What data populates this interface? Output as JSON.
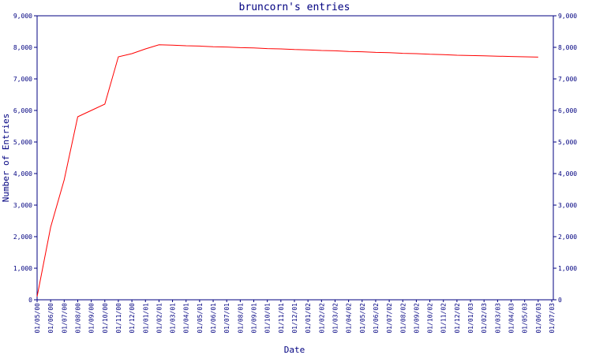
{
  "chart_data": {
    "type": "line",
    "title": "bruncorn's entries",
    "xlabel": "Date",
    "ylabel": "Number of Entries",
    "categories": [
      "01/05/00",
      "01/06/00",
      "01/07/00",
      "01/08/00",
      "01/09/00",
      "01/10/00",
      "01/11/00",
      "01/12/00",
      "01/01/01",
      "01/02/01",
      "01/03/01",
      "01/04/01",
      "01/05/01",
      "01/06/01",
      "01/07/01",
      "01/08/01",
      "01/09/01",
      "01/10/01",
      "01/11/01",
      "01/12/01",
      "01/01/02",
      "01/02/02",
      "01/03/02",
      "01/04/02",
      "01/05/02",
      "01/06/02",
      "01/07/02",
      "01/08/02",
      "01/09/02",
      "01/10/02",
      "01/11/02",
      "01/12/02",
      "01/01/03",
      "01/02/03",
      "01/03/03",
      "01/04/03",
      "01/05/03",
      "01/06/03",
      "01/07/03"
    ],
    "series": [
      {
        "color": "#ff0000",
        "values": [
          100,
          2300,
          3800,
          5800,
          6000,
          6200,
          7700,
          7800,
          7950,
          8080,
          8070,
          8050,
          8040,
          8020,
          8010,
          7990,
          7980,
          7960,
          7950,
          7930,
          7920,
          7900,
          7890,
          7870,
          7860,
          7840,
          7830,
          7810,
          7800,
          7780,
          7770,
          7750,
          7740,
          7730,
          7720,
          7710,
          7700,
          7690,
          null
        ]
      }
    ],
    "ylim": [
      0,
      9000
    ],
    "yticks": [
      0,
      {
        "value": 1000,
        "label": "1,000"
      },
      {
        "value": 2000,
        "label": "2,000"
      },
      {
        "value": 3000,
        "label": "3,000"
      },
      {
        "value": 4000,
        "label": "4,000"
      },
      {
        "value": 5000,
        "label": "5,000"
      },
      {
        "value": 6000,
        "label": "6,000"
      },
      {
        "value": 7000,
        "label": "7,000"
      },
      {
        "value": 8000,
        "label": "8,000"
      },
      {
        "value": 9000,
        "label": "9,000"
      }
    ],
    "mirror_y_axis": true,
    "axis_color": "#000080"
  }
}
